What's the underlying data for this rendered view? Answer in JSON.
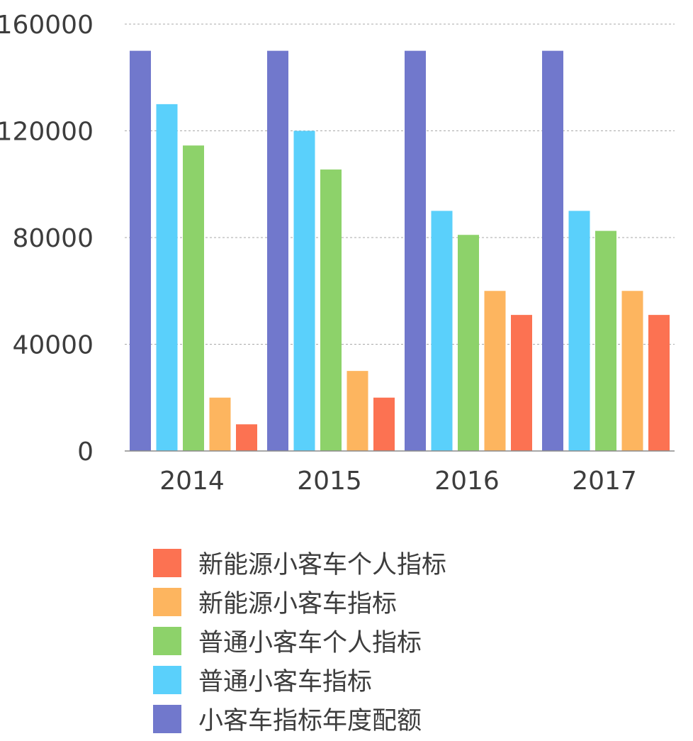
{
  "chart_data": {
    "type": "bar",
    "categories": [
      "2014",
      "2015",
      "2016",
      "2017"
    ],
    "ylim": [
      0,
      160000
    ],
    "y_ticks": [
      "0",
      "40000",
      "80000",
      "120000",
      "160000"
    ],
    "grid": "horizontal dashed",
    "legend_position": "bottom",
    "series": [
      {
        "name": "小客车指标年度配额",
        "color": "#7178cc",
        "values": [
          150000,
          150000,
          150000,
          150000
        ]
      },
      {
        "name": "普通小客车指标",
        "color": "#5ad0fb",
        "values": [
          130000,
          120000,
          90000,
          90000
        ]
      },
      {
        "name": "普通小客车个人指标",
        "color": "#8dd26a",
        "values": [
          114500,
          105500,
          81000,
          82500
        ]
      },
      {
        "name": "新能源小客车指标",
        "color": "#fdb55f",
        "values": [
          20000,
          30000,
          60000,
          60000
        ]
      },
      {
        "name": "新能源小客车个人指标",
        "color": "#fc7252",
        "values": [
          10000,
          20000,
          51000,
          51000
        ]
      }
    ]
  },
  "legend": {
    "items": [
      {
        "label": "新能源小客车个人指标",
        "color": "#fc7252"
      },
      {
        "label": "新能源小客车指标",
        "color": "#fdb55f"
      },
      {
        "label": "普通小客车个人指标",
        "color": "#8dd26a"
      },
      {
        "label": "普通小客车指标",
        "color": "#5ad0fb"
      },
      {
        "label": "小客车指标年度配额",
        "color": "#7178cc"
      }
    ]
  }
}
